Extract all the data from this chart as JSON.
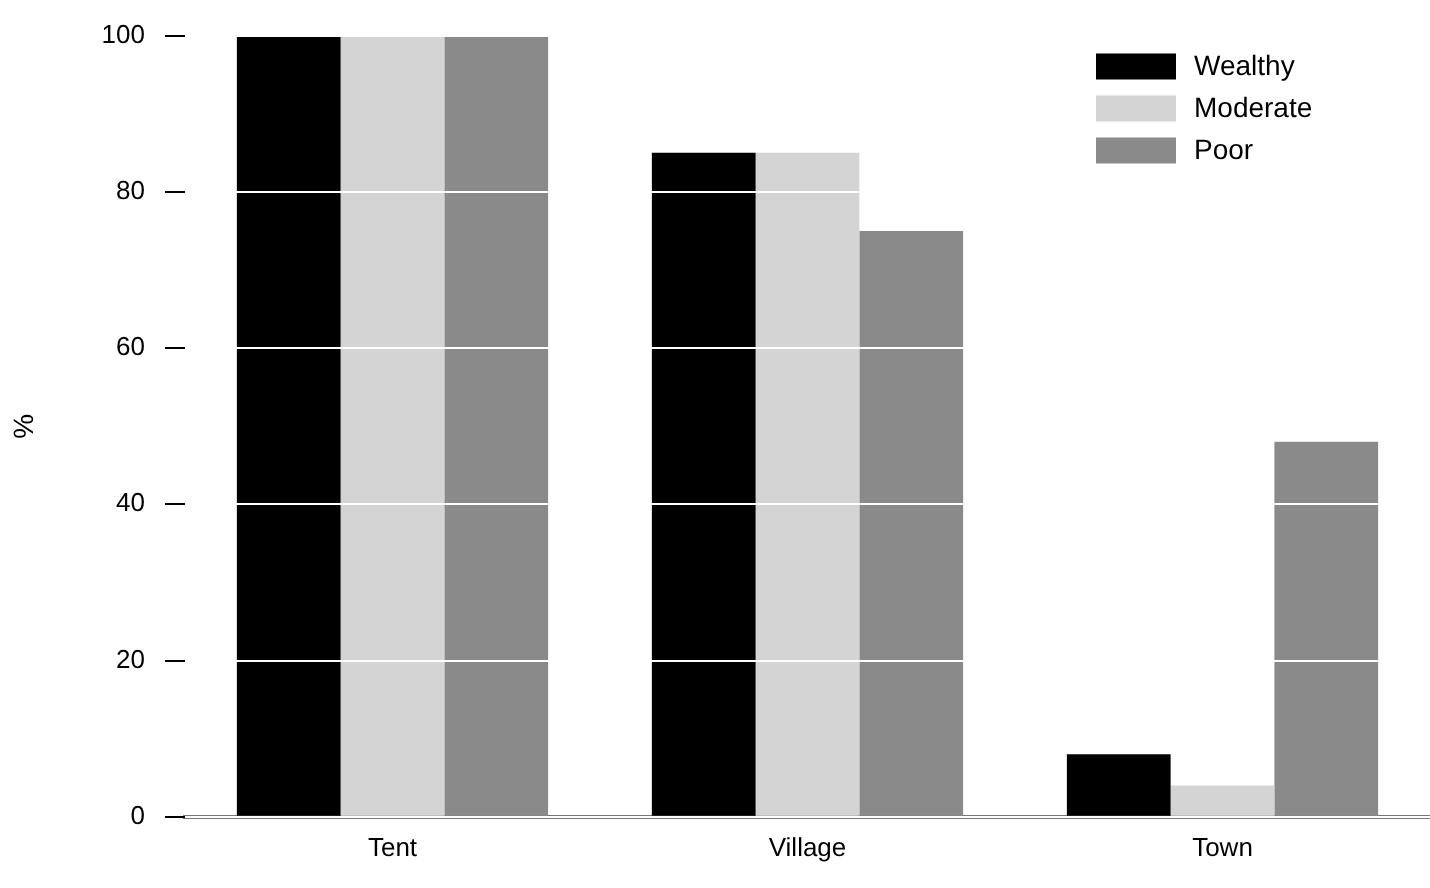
{
  "chart_data": {
    "type": "bar",
    "ylabel": "%",
    "categories": [
      "Tent",
      "Village",
      "Town"
    ],
    "series": [
      {
        "name": "Wealthy",
        "color": "#000000",
        "values": [
          100,
          85,
          8
        ]
      },
      {
        "name": "Moderate",
        "color": "#d4d4d4",
        "values": [
          100,
          85,
          4
        ]
      },
      {
        "name": "Poor",
        "color": "#8a8a8a",
        "values": [
          100,
          75,
          48
        ]
      }
    ],
    "ylim": [
      0,
      100
    ],
    "yticks": [
      0,
      20,
      40,
      60,
      80,
      100
    ],
    "grid": "y",
    "legend": "top right"
  }
}
